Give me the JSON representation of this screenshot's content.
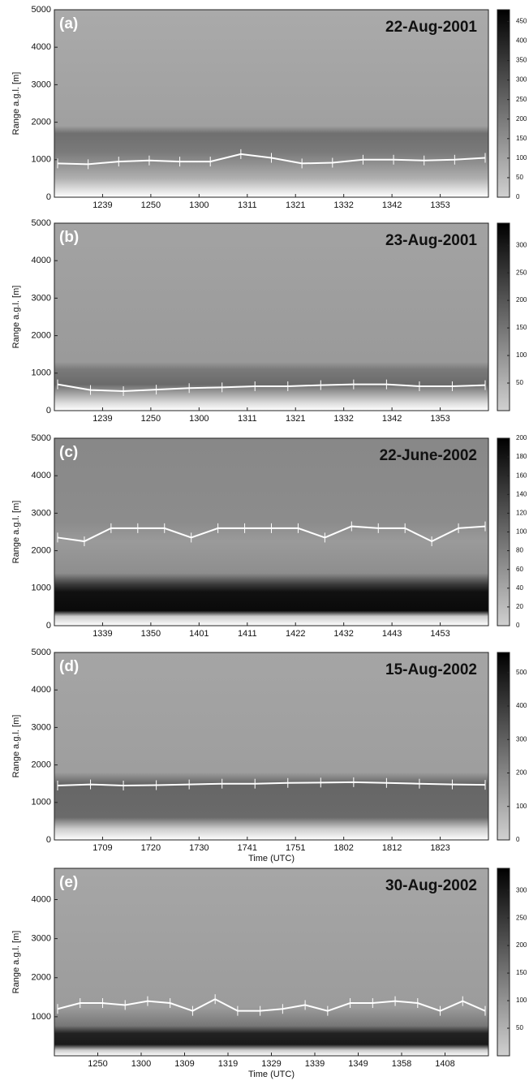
{
  "chart_data": [
    {
      "type": "heatmap",
      "panel_label": "(a)",
      "title": "22-Aug-2001",
      "y_label": "Range a.g.l. [m]",
      "categories": [
        "1239",
        "1250",
        "1300",
        "1311",
        "1321",
        "1332",
        "1342",
        "1353"
      ],
      "ylim": [
        0,
        5000
      ],
      "yticks": [
        0,
        1000,
        2000,
        3000,
        4000,
        5000
      ],
      "colorbar_lim": [
        0,
        480
      ],
      "colorbar_ticks": [
        0,
        50,
        100,
        150,
        200,
        250,
        300,
        350,
        400,
        450
      ],
      "line_color": "#ffffff",
      "pbl_height": [
        900,
        880,
        950,
        980,
        950,
        950,
        1150,
        1050,
        900,
        920,
        1000,
        1000,
        980,
        1000,
        1050
      ]
    },
    {
      "type": "heatmap",
      "panel_label": "(b)",
      "title": "23-Aug-2001",
      "y_label": "Range a.g.l. [m]",
      "categories": [
        "1239",
        "1250",
        "1300",
        "1311",
        "1321",
        "1332",
        "1342",
        "1353"
      ],
      "ylim": [
        0,
        5000
      ],
      "yticks": [
        0,
        1000,
        2000,
        3000,
        4000,
        5000
      ],
      "colorbar_lim": [
        0,
        340
      ],
      "colorbar_ticks": [
        50,
        100,
        150,
        200,
        250,
        300
      ],
      "line_color": "#ffffff",
      "pbl_height": [
        700,
        550,
        520,
        560,
        600,
        620,
        650,
        650,
        680,
        700,
        700,
        650,
        650,
        680
      ]
    },
    {
      "type": "heatmap",
      "panel_label": "(c)",
      "title": "22-June-2002",
      "y_label": "Range a.g.l. [m]",
      "categories": [
        "1339",
        "1350",
        "1401",
        "1411",
        "1422",
        "1432",
        "1443",
        "1453"
      ],
      "ylim": [
        0,
        5000
      ],
      "yticks": [
        0,
        1000,
        2000,
        3000,
        4000,
        5000
      ],
      "colorbar_lim": [
        0,
        200
      ],
      "colorbar_ticks": [
        0,
        20,
        40,
        60,
        80,
        100,
        120,
        140,
        160,
        180,
        200
      ],
      "line_color": "#ffffff",
      "pbl_height": [
        2350,
        2250,
        2600,
        2600,
        2600,
        2350,
        2600,
        2600,
        2600,
        2600,
        2350,
        2650,
        2600,
        2600,
        2250,
        2600,
        2650
      ]
    },
    {
      "type": "heatmap",
      "panel_label": "(d)",
      "title": "15-Aug-2002",
      "y_label": "Range a.g.l. [m]",
      "x_label": "Time (UTC)",
      "categories": [
        "1709",
        "1720",
        "1730",
        "1741",
        "1751",
        "1802",
        "1812",
        "1823"
      ],
      "ylim": [
        0,
        5000
      ],
      "yticks": [
        0,
        1000,
        2000,
        3000,
        4000,
        5000
      ],
      "colorbar_lim": [
        0,
        560
      ],
      "colorbar_ticks": [
        0,
        100,
        200,
        300,
        400,
        500
      ],
      "line_color": "#ffffff",
      "pbl_height": [
        1450,
        1480,
        1450,
        1460,
        1480,
        1500,
        1500,
        1520,
        1530,
        1540,
        1520,
        1500,
        1480,
        1470
      ]
    },
    {
      "type": "heatmap",
      "panel_label": "(e)",
      "title": "30-Aug-2002",
      "y_label": "Range a.g.l. [m]",
      "x_label": "Time (UTC)",
      "categories": [
        "1250",
        "1300",
        "1309",
        "1319",
        "1329",
        "1339",
        "1349",
        "1358",
        "1408"
      ],
      "ylim": [
        0,
        4800
      ],
      "yticks": [
        1000,
        2000,
        3000,
        4000
      ],
      "colorbar_lim": [
        0,
        340
      ],
      "colorbar_ticks": [
        50,
        100,
        150,
        200,
        250,
        300
      ],
      "line_color": "#ffffff",
      "pbl_height": [
        1200,
        1350,
        1350,
        1300,
        1400,
        1350,
        1150,
        1450,
        1150,
        1150,
        1200,
        1300,
        1150,
        1350,
        1350,
        1400,
        1350,
        1150,
        1400,
        1150
      ]
    }
  ]
}
